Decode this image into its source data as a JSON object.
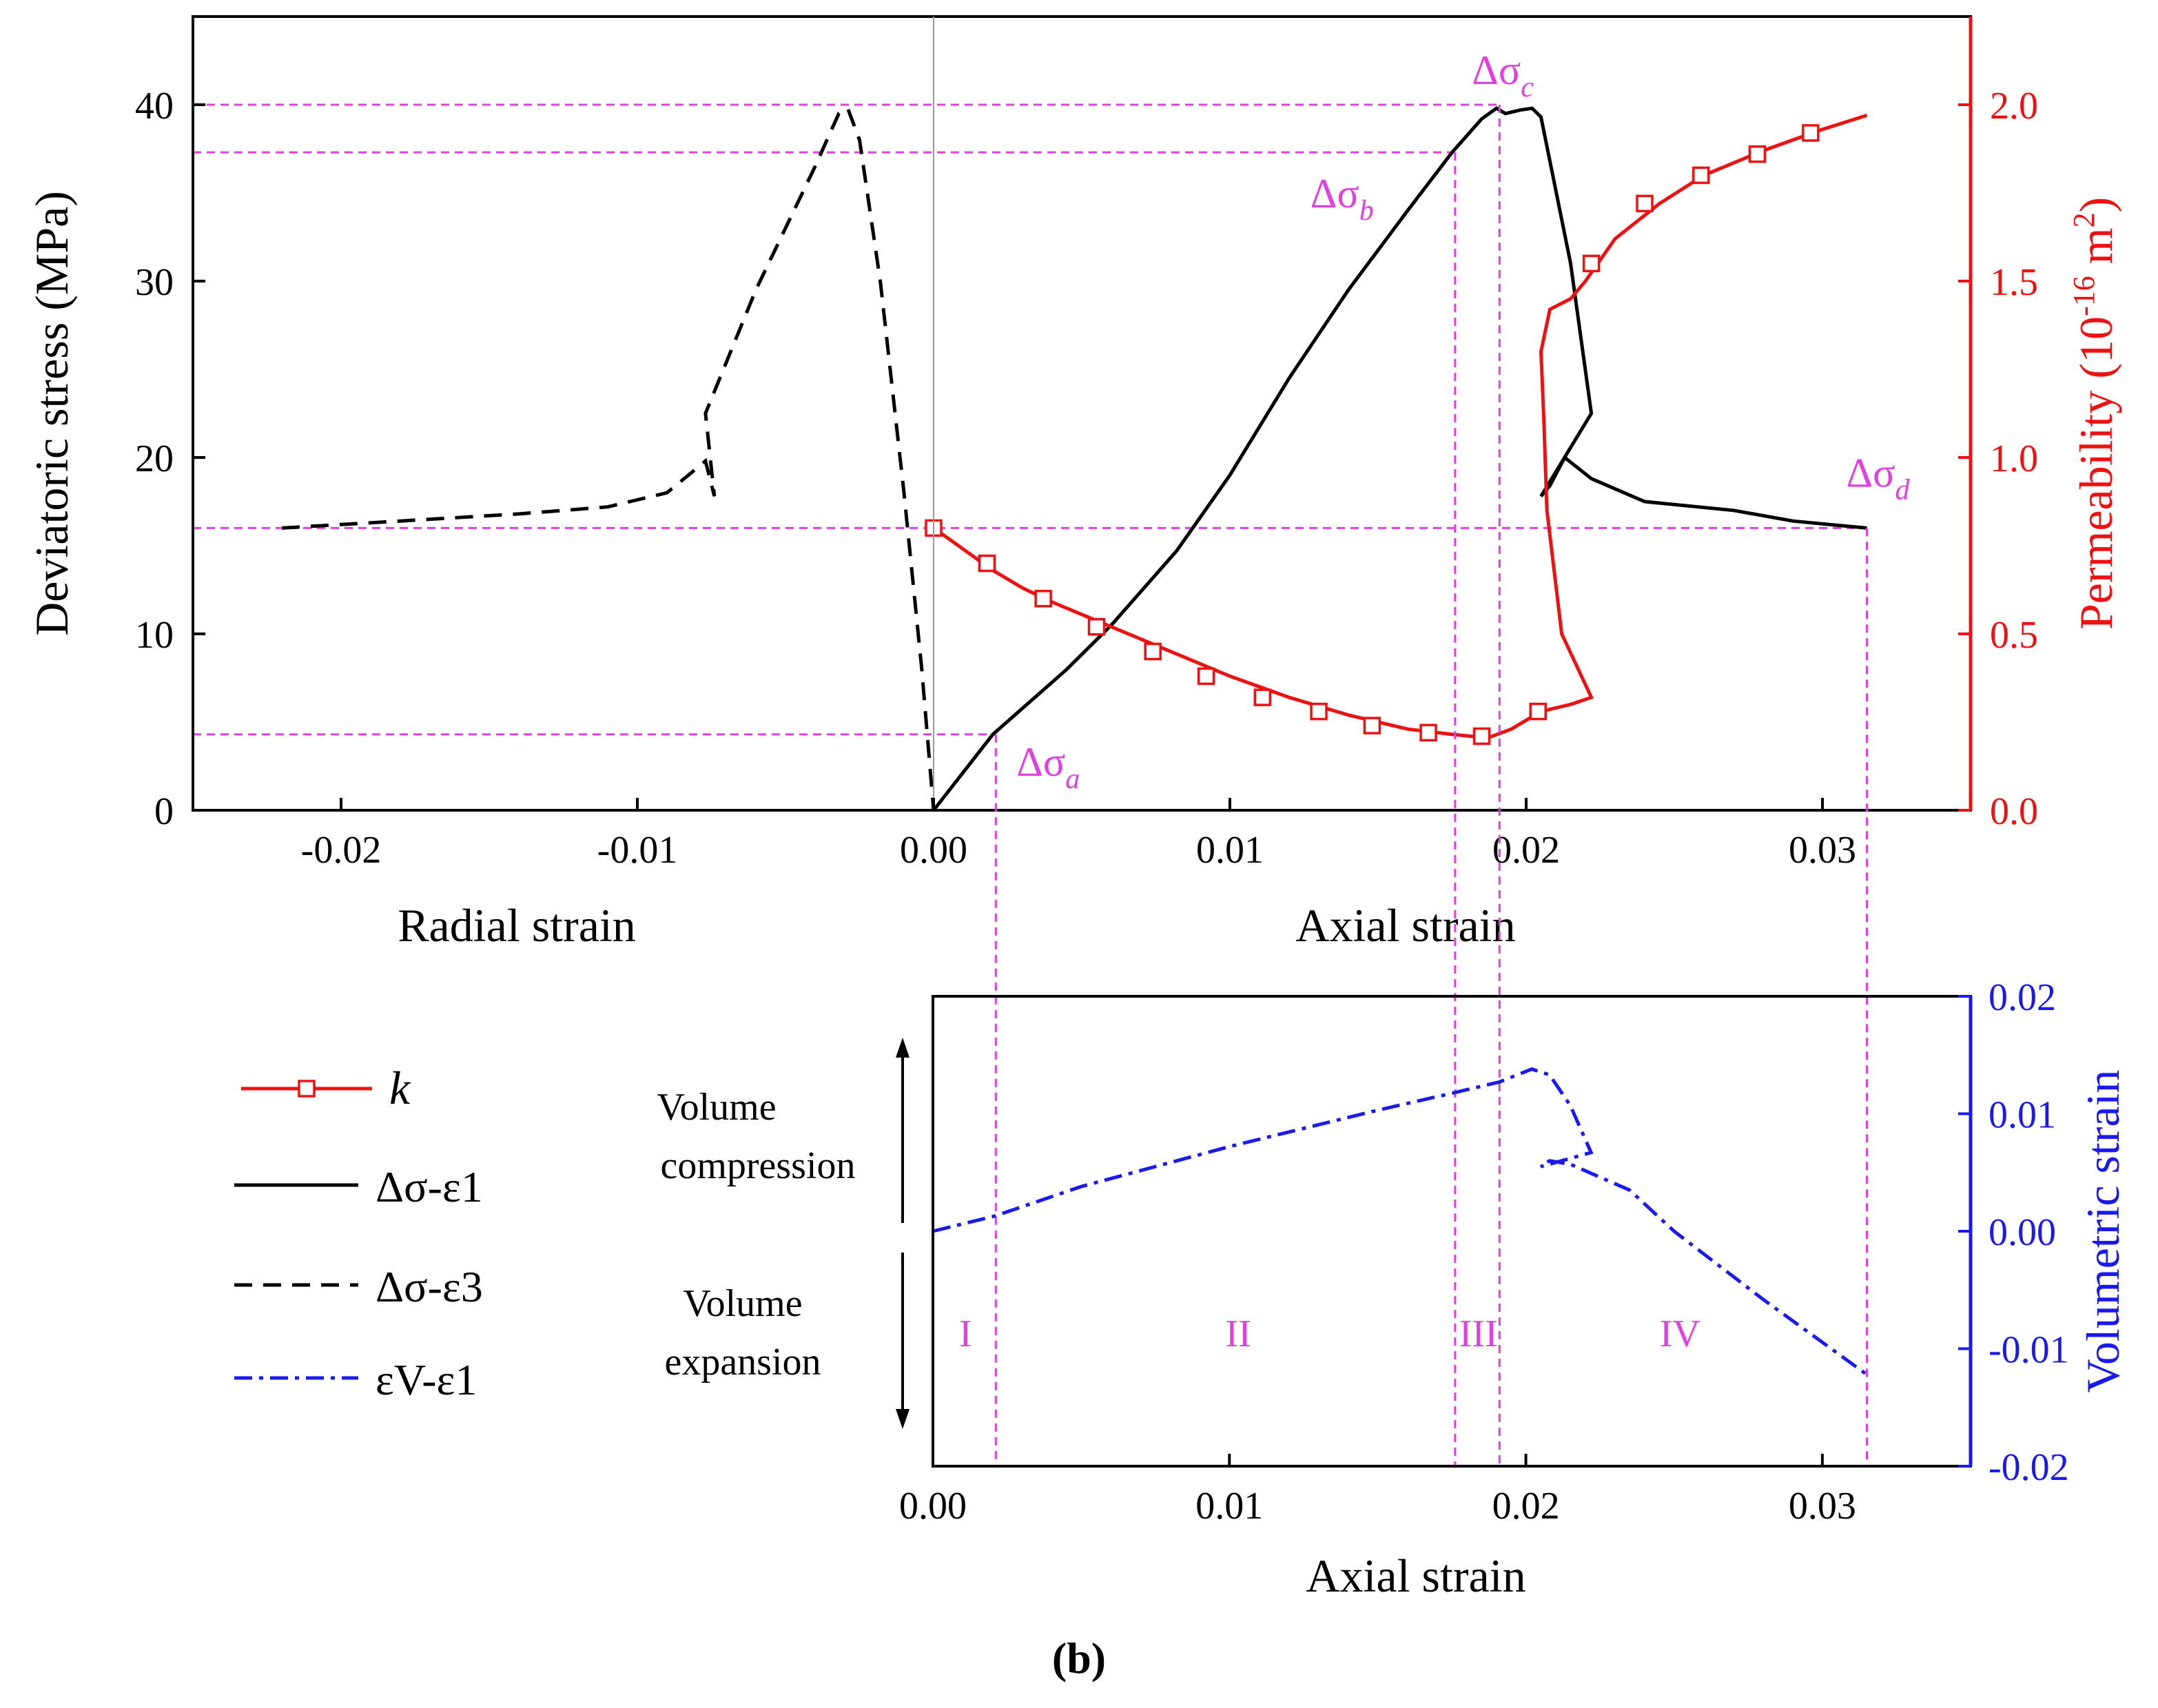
{
  "caption": "(b)",
  "chart_data": [
    {
      "type": "line",
      "panel": "top",
      "x_axis": {
        "left_label": "Radial strain",
        "right_label": "Axial strain",
        "range": [
          -0.025,
          0.035
        ],
        "ticks": [
          -0.02,
          -0.01,
          0.0,
          0.01,
          0.02,
          0.03
        ],
        "tick_labels": [
          "-0.02",
          "-0.01",
          "0.00",
          "0.01",
          "0.02",
          "0.03"
        ]
      },
      "y_left": {
        "label": "Deviatoric stress (MPa)",
        "range": [
          0,
          45
        ],
        "ticks": [
          0,
          10,
          20,
          30,
          40
        ],
        "tick_labels": [
          "0",
          "10",
          "20",
          "30",
          "40"
        ]
      },
      "y_right": {
        "label": "Permeability (10⁻¹⁶ m²)",
        "range": [
          0,
          2.25
        ],
        "ticks": [
          0,
          0.5,
          1.0,
          1.5,
          2.0
        ],
        "tick_labels": [
          "0.0",
          "0.5",
          "1.0",
          "1.5",
          "2.0"
        ],
        "color": "#ee1111"
      },
      "series": [
        {
          "name": "Δσ-ε1",
          "style": "solid",
          "color": "#000000",
          "axis": "left",
          "points": [
            [
              0.0,
              0.0
            ],
            [
              0.002,
              4.3
            ],
            [
              0.0045,
              8.0
            ],
            [
              0.006,
              10.5
            ],
            [
              0.0082,
              14.7
            ],
            [
              0.01,
              19.0
            ],
            [
              0.012,
              24.5
            ],
            [
              0.014,
              29.5
            ],
            [
              0.016,
              34.0
            ],
            [
              0.0175,
              37.3
            ],
            [
              0.0185,
              39.2
            ],
            [
              0.019,
              39.8
            ],
            [
              0.0193,
              39.5
            ],
            [
              0.0198,
              39.7
            ],
            [
              0.0202,
              39.8
            ],
            [
              0.0205,
              39.3
            ],
            [
              0.0215,
              31.0
            ],
            [
              0.0222,
              22.5
            ],
            [
              0.0205,
              17.8
            ],
            [
              0.0208,
              18.4
            ],
            [
              0.0213,
              20.0
            ],
            [
              0.0222,
              18.8
            ],
            [
              0.024,
              17.5
            ],
            [
              0.027,
              17.0
            ],
            [
              0.029,
              16.4
            ],
            [
              0.0315,
              16.0
            ]
          ]
        },
        {
          "name": "Δσ-ε3",
          "style": "dashed",
          "color": "#000000",
          "axis": "left",
          "points": [
            [
              -0.022,
              16.0
            ],
            [
              -0.018,
              16.4
            ],
            [
              -0.014,
              16.8
            ],
            [
              -0.011,
              17.2
            ],
            [
              -0.009,
              18.0
            ],
            [
              -0.0077,
              19.8
            ],
            [
              -0.0074,
              17.8
            ],
            [
              -0.0077,
              22.5
            ],
            [
              -0.006,
              29.5
            ],
            [
              -0.004,
              36.5
            ],
            [
              -0.0032,
              39.5
            ],
            [
              -0.0029,
              39.8
            ],
            [
              -0.0025,
              38.0
            ],
            [
              -0.0018,
              30.0
            ],
            [
              -0.001,
              18.0
            ],
            [
              -0.0004,
              8.0
            ],
            [
              -0.0001,
              2.0
            ],
            [
              0.0,
              0.0
            ]
          ]
        },
        {
          "name": "k",
          "style": "solid-square-markers",
          "color": "#ee1111",
          "axis": "right",
          "points": [
            [
              0.0,
              0.8
            ],
            [
              0.001,
              0.74
            ],
            [
              0.002,
              0.68
            ],
            [
              0.003,
              0.63
            ],
            [
              0.004,
              0.59
            ],
            [
              0.006,
              0.52
            ],
            [
              0.008,
              0.45
            ],
            [
              0.01,
              0.38
            ],
            [
              0.012,
              0.32
            ],
            [
              0.014,
              0.27
            ],
            [
              0.016,
              0.23
            ],
            [
              0.0175,
              0.215
            ],
            [
              0.0187,
              0.205
            ],
            [
              0.0195,
              0.23
            ],
            [
              0.0205,
              0.28
            ],
            [
              0.0215,
              0.3
            ],
            [
              0.0222,
              0.32
            ],
            [
              0.0212,
              0.5
            ],
            [
              0.0207,
              0.85
            ],
            [
              0.0206,
              1.1
            ],
            [
              0.0205,
              1.3
            ],
            [
              0.0208,
              1.42
            ],
            [
              0.0215,
              1.45
            ],
            [
              0.022,
              1.5
            ],
            [
              0.023,
              1.62
            ],
            [
              0.0245,
              1.72
            ],
            [
              0.026,
              1.8
            ],
            [
              0.028,
              1.87
            ],
            [
              0.03,
              1.93
            ],
            [
              0.0315,
              1.97
            ]
          ],
          "markers": [
            [
              0.0,
              0.8
            ],
            [
              0.0018,
              0.7
            ],
            [
              0.0037,
              0.6
            ],
            [
              0.0055,
              0.52
            ],
            [
              0.0074,
              0.45
            ],
            [
              0.0092,
              0.38
            ],
            [
              0.0111,
              0.32
            ],
            [
              0.013,
              0.28
            ],
            [
              0.0148,
              0.24
            ],
            [
              0.0167,
              0.22
            ],
            [
              0.0185,
              0.21
            ],
            [
              0.0204,
              0.28
            ],
            [
              0.0222,
              1.55
            ],
            [
              0.024,
              1.72
            ],
            [
              0.0259,
              1.8
            ],
            [
              0.0278,
              1.86
            ],
            [
              0.0296,
              1.92
            ]
          ]
        }
      ],
      "reference_lines": {
        "horizontal_stress": [
          4.3,
          37.3,
          40.0,
          16.0
        ],
        "vertical_axial_strain": [
          0.0021,
          0.0176,
          0.0191,
          0.0315
        ]
      },
      "annotations": [
        {
          "base": "Δσ",
          "sub": "a",
          "x": 0.0021,
          "y": 4.3
        },
        {
          "base": "Δσ",
          "sub": "b",
          "x": 0.0176,
          "y": 37.3
        },
        {
          "base": "Δσ",
          "sub": "c",
          "x": 0.0191,
          "y": 40.0
        },
        {
          "base": "Δσ",
          "sub": "d",
          "x": 0.0315,
          "y": 16.0
        }
      ]
    },
    {
      "type": "line",
      "panel": "bottom",
      "x_axis": {
        "label": "Axial strain",
        "range": [
          0.0,
          0.035
        ],
        "ticks": [
          0.0,
          0.01,
          0.02,
          0.03
        ],
        "tick_labels": [
          "0.00",
          "0.01",
          "0.02",
          "0.03"
        ]
      },
      "y_right": {
        "label": "Volumetric strain",
        "range": [
          -0.02,
          0.02
        ],
        "ticks": [
          -0.02,
          -0.01,
          0.0,
          0.01,
          0.02
        ],
        "tick_labels": [
          "-0.02",
          "-0.01",
          "0.00",
          "0.01",
          "0.02"
        ],
        "color": "#1a1aee"
      },
      "series": [
        {
          "name": "εV-ε1",
          "style": "dash-dot",
          "color": "#1a1aee",
          "points": [
            [
              0.0,
              0.0
            ],
            [
              0.0021,
              0.0013
            ],
            [
              0.005,
              0.0038
            ],
            [
              0.01,
              0.0072
            ],
            [
              0.015,
              0.0103
            ],
            [
              0.0176,
              0.0118
            ],
            [
              0.0191,
              0.0127
            ],
            [
              0.0202,
              0.0138
            ],
            [
              0.0208,
              0.0133
            ],
            [
              0.0215,
              0.0107
            ],
            [
              0.0222,
              0.0067
            ],
            [
              0.0205,
              0.0055
            ],
            [
              0.0208,
              0.006
            ],
            [
              0.0215,
              0.0057
            ],
            [
              0.0235,
              0.0035
            ],
            [
              0.025,
              0.0
            ],
            [
              0.028,
              -0.0058
            ],
            [
              0.0315,
              -0.0122
            ]
          ]
        }
      ],
      "stage_labels": [
        {
          "label": "I",
          "x": 0.0011
        },
        {
          "label": "II",
          "x": 0.0103
        },
        {
          "label": "III",
          "x": 0.0184
        },
        {
          "label": "IV",
          "x": 0.0252
        }
      ],
      "direction_notes": {
        "up_line1": "Volume",
        "up_line2": "compression",
        "down_line1": "Volume",
        "down_line2": "expansion"
      }
    }
  ],
  "legend": [
    {
      "symbol": "k",
      "style": "solid-square-markers",
      "color": "#ee1111"
    },
    {
      "symbol": "Δσ-ε1",
      "style": "solid",
      "color": "#000000"
    },
    {
      "symbol": "Δσ-ε3",
      "style": "dashed",
      "color": "#000000"
    },
    {
      "symbol": "εV-ε1",
      "style": "dash-dot",
      "color": "#1a1aee"
    }
  ],
  "colors": {
    "guide": "#e040e0",
    "stress": "#000000",
    "permeability": "#ee1111",
    "volumetric": "#1a1aee"
  }
}
